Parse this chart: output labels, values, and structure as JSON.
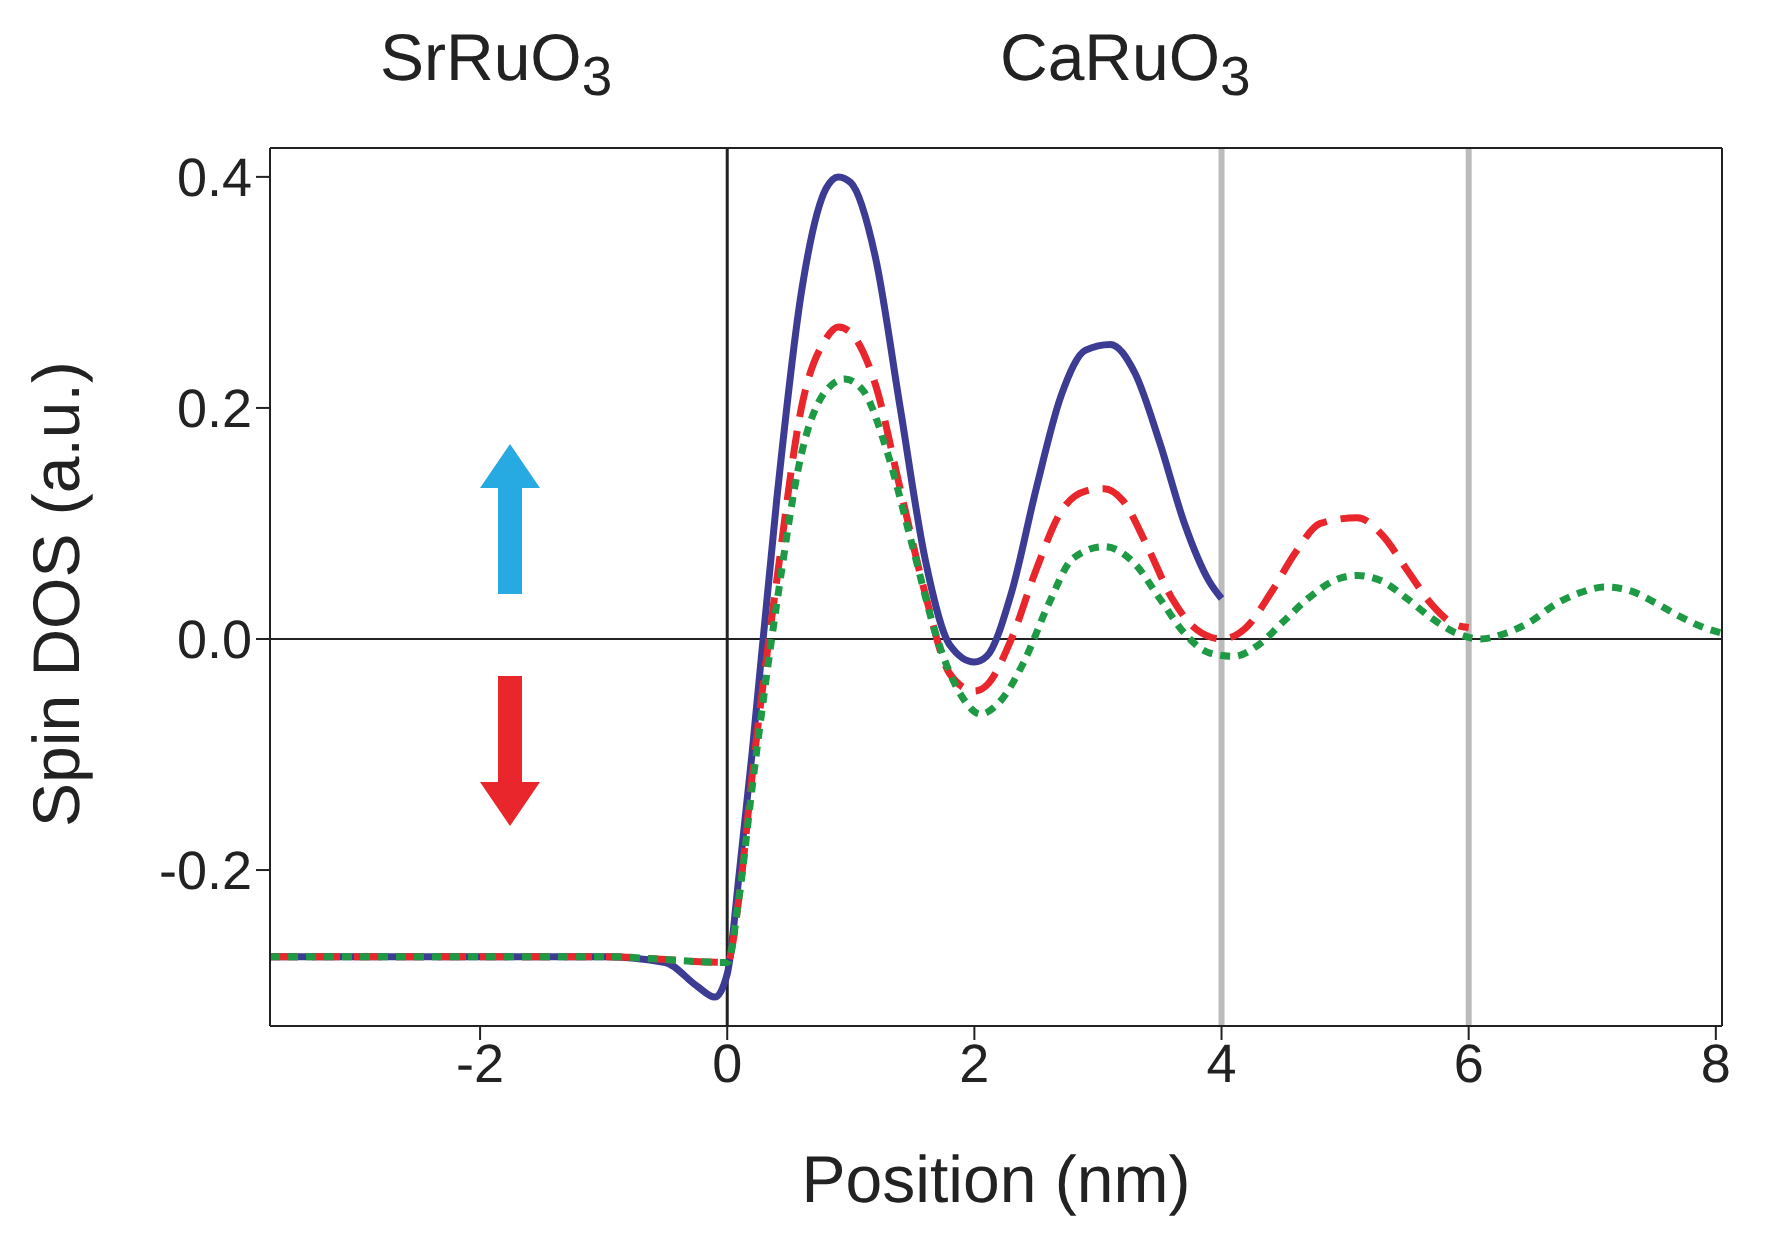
{
  "chart_data": {
    "type": "line",
    "xlabel": "Position (nm)",
    "ylabel": "Spin DOS (a.u.)",
    "annotations": [
      "SrRuO$_{3}$",
      "CaRuO$_{3}$"
    ],
    "xlim": [
      -3.7,
      8.05
    ],
    "ylim": [
      -0.335,
      0.425
    ],
    "xticks": [
      -2,
      0,
      2,
      4,
      6,
      8
    ],
    "yticks": [
      -0.2,
      {
        "value": 0,
        "label": "0.0"
      },
      0.2,
      0.4
    ],
    "ref_lines": [
      {
        "axis": "x",
        "value": 0,
        "color": "#222222"
      },
      {
        "axis": "x",
        "value": 4,
        "color": "#bbbbbb"
      },
      {
        "axis": "x",
        "value": 6,
        "color": "#bbbbbb"
      },
      {
        "axis": "y",
        "value": 0,
        "color": "#222222"
      }
    ],
    "series": [
      {
        "color": "#3c3c94",
        "line_style": "solid",
        "x": [
          -3.7,
          -1,
          -0.5,
          -0.25,
          -0.1,
          0,
          0.1,
          0.2,
          0.4,
          0.6,
          0.8,
          0.9,
          1.0,
          1.2,
          1.4,
          1.6,
          1.8,
          2.0,
          2.1,
          2.3,
          2.5,
          2.7,
          2.9,
          3.1,
          3.3,
          3.5,
          3.7,
          3.9,
          4.0
        ],
        "values": [
          -0.275,
          -0.275,
          -0.28,
          -0.3,
          -0.31,
          -0.29,
          -0.2,
          -0.1,
          0.12,
          0.3,
          0.39,
          0.4,
          0.395,
          0.33,
          0.2,
          0.07,
          -0.005,
          -0.02,
          -0.015,
          0.04,
          0.13,
          0.21,
          0.25,
          0.255,
          0.23,
          0.17,
          0.1,
          0.05,
          0.035
        ]
      },
      {
        "color": "#e8262b",
        "line_style": "dashed",
        "x": [
          -3.7,
          -1,
          0,
          0.1,
          0.2,
          0.4,
          0.6,
          0.8,
          0.9,
          1.0,
          1.2,
          1.4,
          1.6,
          1.8,
          2.0,
          2.1,
          2.3,
          2.5,
          2.7,
          2.9,
          3.05,
          3.2,
          3.4,
          3.6,
          3.8,
          4.0,
          4.2,
          4.4,
          4.6,
          4.8,
          5.1,
          5.3,
          5.5,
          5.7,
          5.9,
          6.0
        ],
        "values": [
          -0.275,
          -0.275,
          -0.28,
          -0.22,
          -0.12,
          0.05,
          0.2,
          0.26,
          0.27,
          0.265,
          0.22,
          0.13,
          0.04,
          -0.03,
          -0.045,
          -0.04,
          0.0,
          0.06,
          0.11,
          0.128,
          0.13,
          0.12,
          0.08,
          0.035,
          0.008,
          0.0,
          0.01,
          0.04,
          0.075,
          0.1,
          0.105,
          0.09,
          0.06,
          0.03,
          0.012,
          0.01
        ]
      },
      {
        "color": "#1e9a44",
        "line_style": "dotted",
        "x": [
          -3.7,
          -1,
          0,
          0.1,
          0.2,
          0.4,
          0.6,
          0.8,
          0.95,
          1.1,
          1.3,
          1.5,
          1.7,
          1.9,
          2.05,
          2.2,
          2.4,
          2.6,
          2.8,
          3.05,
          3.3,
          3.5,
          3.7,
          3.9,
          4.1,
          4.3,
          4.5,
          4.7,
          4.9,
          5.1,
          5.3,
          5.5,
          5.7,
          5.9,
          6.1,
          6.3,
          6.5,
          6.7,
          6.9,
          7.1,
          7.3,
          7.5,
          7.7,
          7.9,
          8.05
        ],
        "values": [
          -0.275,
          -0.275,
          -0.28,
          -0.22,
          -0.13,
          0.03,
          0.16,
          0.215,
          0.225,
          0.215,
          0.16,
          0.08,
          0.0,
          -0.05,
          -0.065,
          -0.055,
          -0.02,
          0.03,
          0.07,
          0.08,
          0.065,
          0.035,
          0.005,
          -0.012,
          -0.015,
          -0.005,
          0.015,
          0.035,
          0.05,
          0.055,
          0.05,
          0.035,
          0.018,
          0.005,
          0.0,
          0.005,
          0.015,
          0.03,
          0.04,
          0.045,
          0.042,
          0.032,
          0.02,
          0.01,
          0.005
        ]
      }
    ]
  }
}
